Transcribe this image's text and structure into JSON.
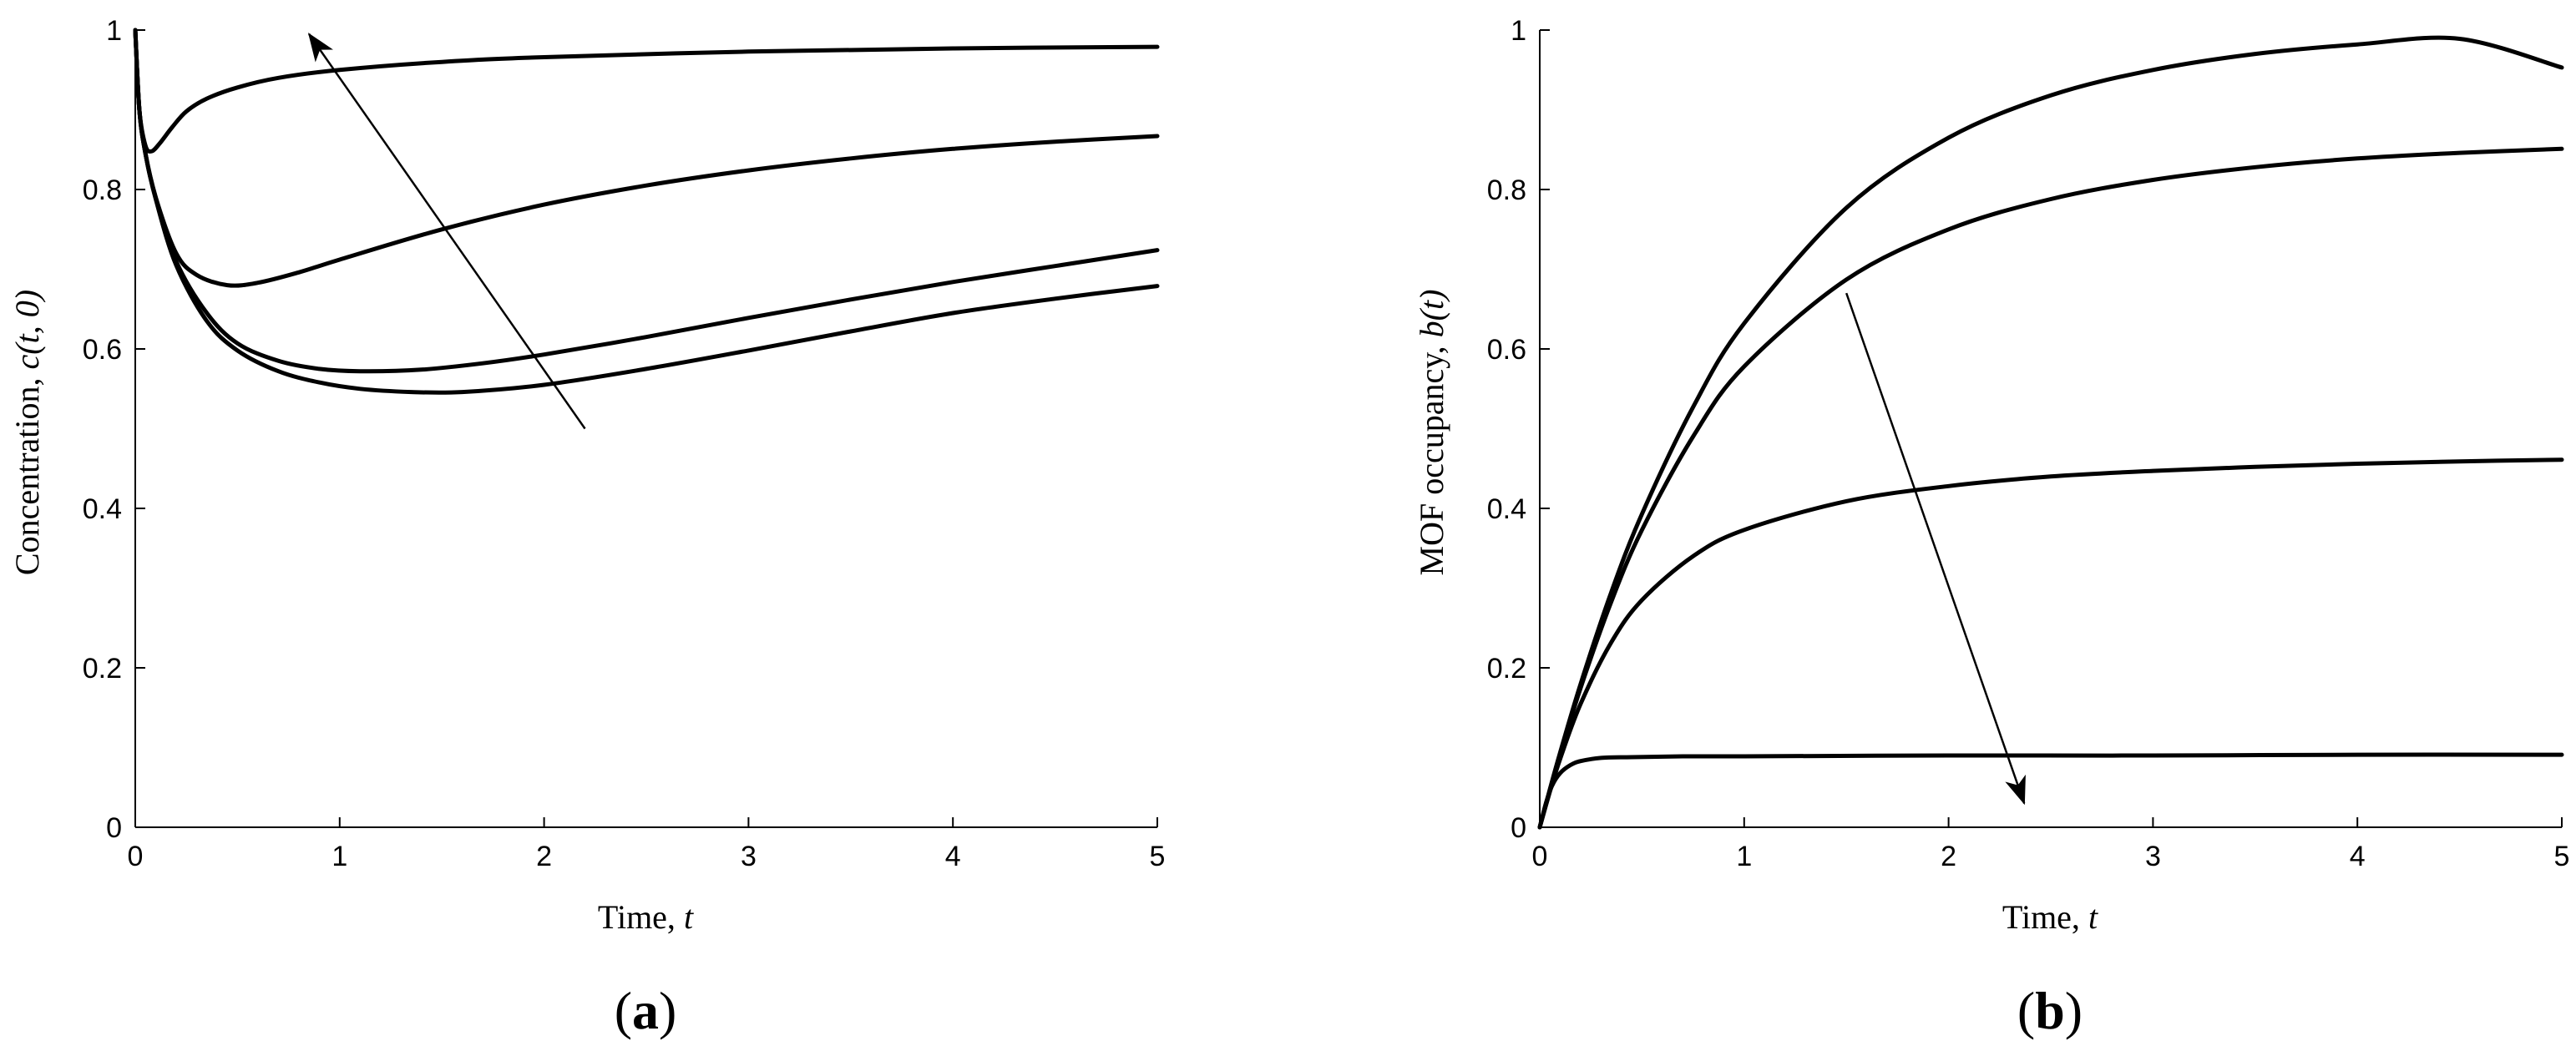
{
  "chart_data": [
    {
      "type": "line",
      "panel_label": {
        "open": "(",
        "letter": "a",
        "close": ")"
      },
      "xlabel": {
        "text": "Time, ",
        "symbol": "t"
      },
      "ylabel": {
        "text": "Concentration, ",
        "symbol": "c(t, 0)"
      },
      "xlim": [
        0,
        5
      ],
      "ylim": [
        0,
        1
      ],
      "xticks": [
        0,
        1,
        2,
        3,
        4,
        5
      ],
      "yticks": [
        0,
        0.2,
        0.4,
        0.6,
        0.8,
        1
      ],
      "ytick_labels": [
        "0",
        "0.2",
        "0.4",
        "0.6",
        "0.8",
        "1"
      ],
      "grid": false,
      "line_color": "#000000",
      "series": [
        {
          "x": [
            0,
            0.02,
            0.05,
            0.08,
            0.12,
            0.18,
            0.25,
            0.35,
            0.5,
            0.7,
            1.0,
            1.5,
            2.0,
            3.0,
            4.0,
            5.0
          ],
          "y": [
            1.0,
            0.9,
            0.855,
            0.848,
            0.858,
            0.878,
            0.898,
            0.914,
            0.928,
            0.94,
            0.95,
            0.96,
            0.966,
            0.973,
            0.977,
            0.979
          ]
        },
        {
          "x": [
            0,
            0.02,
            0.05,
            0.1,
            0.2,
            0.3,
            0.45,
            0.6,
            0.8,
            1.0,
            1.5,
            2.0,
            2.5,
            3.0,
            3.5,
            4.0,
            4.5,
            5.0
          ],
          "y": [
            1.0,
            0.9,
            0.845,
            0.79,
            0.72,
            0.693,
            0.68,
            0.683,
            0.696,
            0.712,
            0.75,
            0.781,
            0.805,
            0.824,
            0.839,
            0.851,
            0.86,
            0.867
          ]
        },
        {
          "x": [
            0,
            0.02,
            0.05,
            0.1,
            0.2,
            0.35,
            0.5,
            0.7,
            0.9,
            1.1,
            1.4,
            1.7,
            2.0,
            2.5,
            3.0,
            3.5,
            4.0,
            4.5,
            5.0
          ],
          "y": [
            1.0,
            0.9,
            0.845,
            0.79,
            0.71,
            0.645,
            0.607,
            0.585,
            0.575,
            0.572,
            0.574,
            0.582,
            0.593,
            0.615,
            0.639,
            0.662,
            0.684,
            0.704,
            0.724
          ]
        },
        {
          "x": [
            0,
            0.02,
            0.05,
            0.1,
            0.2,
            0.35,
            0.5,
            0.7,
            0.9,
            1.1,
            1.35,
            1.6,
            2.0,
            2.5,
            3.0,
            3.5,
            4.0,
            4.5,
            5.0
          ],
          "y": [
            1.0,
            0.9,
            0.845,
            0.788,
            0.705,
            0.635,
            0.598,
            0.572,
            0.558,
            0.55,
            0.546,
            0.546,
            0.555,
            0.575,
            0.598,
            0.622,
            0.645,
            0.663,
            0.679
          ]
        }
      ],
      "annotation_arrow": {
        "from": [
          2.2,
          0.5
        ],
        "to": [
          0.85,
          0.995
        ]
      }
    },
    {
      "type": "line",
      "panel_label": {
        "open": "(",
        "letter": "b",
        "close": ")"
      },
      "xlabel": {
        "text": "Time, ",
        "symbol": "t"
      },
      "ylabel": {
        "text": "MOF occupancy, ",
        "symbol": "b(t)"
      },
      "xlim": [
        0,
        5
      ],
      "ylim": [
        0,
        1
      ],
      "xticks": [
        0,
        1,
        2,
        3,
        4,
        5
      ],
      "yticks": [
        0,
        0.2,
        0.4,
        0.6,
        0.8,
        1
      ],
      "ytick_labels": [
        "0",
        "0.2",
        "0.4",
        "0.6",
        "0.8",
        "1"
      ],
      "grid": false,
      "line_color": "#000000",
      "series": [
        {
          "x": [
            0,
            0.05,
            0.1,
            0.2,
            0.35,
            0.5,
            0.75,
            1.0,
            1.5,
            2.0,
            2.5,
            3.0,
            3.5,
            4.0,
            4.5,
            5.0
          ],
          "y": [
            0,
            0.048,
            0.094,
            0.18,
            0.295,
            0.393,
            0.527,
            0.632,
            0.777,
            0.865,
            0.918,
            0.95,
            0.97,
            0.982,
            0.989,
            0.953
          ]
        },
        {
          "x": [
            0,
            0.05,
            0.1,
            0.2,
            0.35,
            0.5,
            0.75,
            1.0,
            1.5,
            2.0,
            2.5,
            3.0,
            3.5,
            4.0,
            4.5,
            5.0
          ],
          "y": [
            0,
            0.047,
            0.092,
            0.175,
            0.283,
            0.373,
            0.49,
            0.578,
            0.687,
            0.75,
            0.788,
            0.812,
            0.828,
            0.839,
            0.846,
            0.851
          ]
        },
        {
          "x": [
            0,
            0.05,
            0.1,
            0.2,
            0.35,
            0.5,
            0.75,
            1.0,
            1.5,
            2.0,
            2.5,
            3.0,
            3.5,
            4.0,
            4.5,
            5.0
          ],
          "y": [
            0,
            0.045,
            0.086,
            0.155,
            0.232,
            0.285,
            0.34,
            0.373,
            0.409,
            0.428,
            0.44,
            0.447,
            0.452,
            0.456,
            0.459,
            0.461
          ]
        },
        {
          "x": [
            0,
            0.03,
            0.06,
            0.1,
            0.15,
            0.2,
            0.3,
            0.45,
            0.7,
            1.0,
            2.0,
            3.0,
            4.0,
            5.0
          ],
          "y": [
            0,
            0.03,
            0.052,
            0.068,
            0.078,
            0.083,
            0.087,
            0.088,
            0.089,
            0.089,
            0.09,
            0.09,
            0.091,
            0.091
          ]
        }
      ],
      "annotation_arrow": {
        "from": [
          1.5,
          0.67
        ],
        "to": [
          2.37,
          0.03
        ]
      }
    }
  ]
}
